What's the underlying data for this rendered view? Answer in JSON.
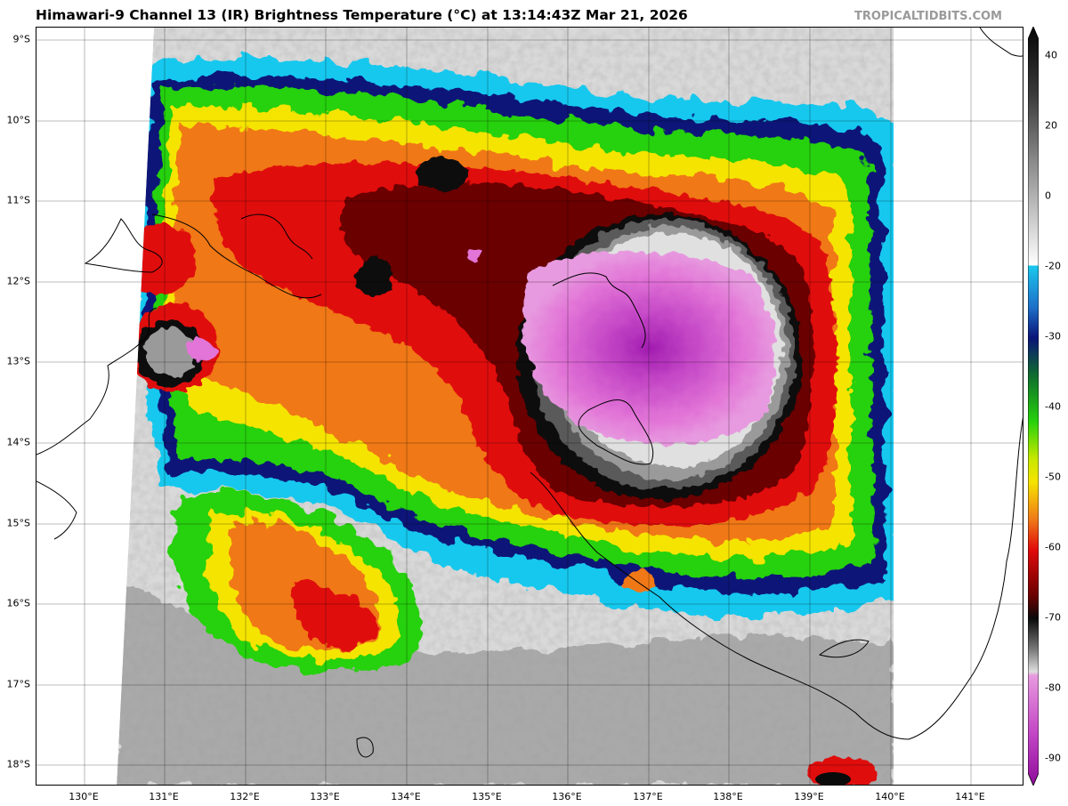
{
  "header": {
    "title": "Himawari-9 Channel 13 (IR) Brightness Temperature (°C) at 13:14:43Z Mar 21, 2026",
    "credit": "TROPICALTIDBITS.COM"
  },
  "map": {
    "lat_labels": [
      "9°S",
      "10°S",
      "11°S",
      "12°S",
      "13°S",
      "14°S",
      "15°S",
      "16°S",
      "17°S",
      "18°S"
    ],
    "lon_labels": [
      "130°E",
      "131°E",
      "132°E",
      "133°E",
      "134°E",
      "135°E",
      "136°E",
      "137°E",
      "138°E",
      "139°E",
      "140°E",
      "141°E"
    ]
  },
  "colorbar": {
    "tick_labels": [
      "40",
      "20",
      "0",
      "-20",
      "-30",
      "-40",
      "-50",
      "-60",
      "-70",
      "-80",
      "-90"
    ],
    "colors": {
      "warm_white": "#f2f2f2",
      "gray": "#8c8c8c",
      "black": "#0a0a0a",
      "cyan": "#19c8ee",
      "navy": "#0a1478",
      "green": "#26d10b",
      "yellow": "#f5e400",
      "orange": "#f07818",
      "red": "#e00a0a",
      "darkred": "#6a0000",
      "pink": "#e26ed4",
      "purple": "#8e0c9a"
    }
  }
}
